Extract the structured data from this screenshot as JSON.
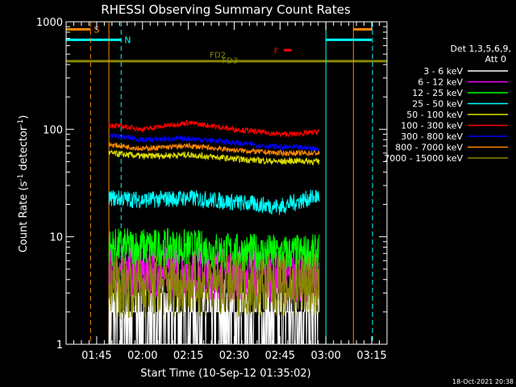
{
  "chart_data": {
    "type": "line",
    "title": "RHESSI Observing Summary Count Rates",
    "xlabel": "Start Time (10-Sep-12 01:35:02)",
    "ylabel_main": "Count Rate (s",
    "ylabel_sup1": "-1",
    "ylabel_mid": " detector",
    "ylabel_sup2": "-1",
    "ylabel_end": ")",
    "yscale": "log",
    "ylim": [
      1,
      1000
    ],
    "xlim_minutes": [
      0,
      100
    ],
    "x_ticks": [
      {
        "label": "01:45",
        "min": 10
      },
      {
        "label": "02:00",
        "min": 25
      },
      {
        "label": "02:15",
        "min": 40
      },
      {
        "label": "02:30",
        "min": 55
      },
      {
        "label": "02:45",
        "min": 70
      },
      {
        "label": "03:00",
        "min": 85
      },
      {
        "label": "03:15",
        "min": 100
      }
    ],
    "y_ticks": [
      {
        "label": "1",
        "value": 1
      },
      {
        "label": "10",
        "value": 10
      },
      {
        "label": "100",
        "value": 100
      },
      {
        "label": "1000",
        "value": 1000
      }
    ],
    "legend": {
      "header1": "Det 1,3,5,6,9,",
      "header2": "Att 0",
      "position": "right"
    },
    "series": [
      {
        "name": "3 - 6 keV",
        "color": "#ffffff",
        "level": 1.8,
        "noise": 0.9,
        "x": [
          14,
          25,
          40,
          55,
          70,
          75,
          83
        ],
        "y": [
          1.5,
          1.6,
          1.8,
          1.9,
          2.0,
          2.2,
          1.9
        ]
      },
      {
        "name": "6 - 12 keV",
        "color": "#ff00ff",
        "level": 4.5,
        "noise": 0.25,
        "x": [
          14,
          25,
          40,
          55,
          70,
          75,
          83
        ],
        "y": [
          5.0,
          4.8,
          4.6,
          4.5,
          4.3,
          4.2,
          4.3
        ]
      },
      {
        "name": "12 - 25 keV",
        "color": "#00ff00",
        "level": 7.5,
        "noise": 0.18,
        "x": [
          14,
          25,
          40,
          55,
          70,
          75,
          83
        ],
        "y": [
          8.0,
          8.0,
          7.8,
          7.2,
          7.0,
          7.0,
          7.0
        ]
      },
      {
        "name": "25 - 50 keV",
        "color": "#00ffff",
        "level": 21,
        "noise": 0.08,
        "x": [
          14,
          25,
          40,
          55,
          70,
          75,
          83
        ],
        "y": [
          23,
          22,
          23,
          21,
          19,
          21,
          24
        ]
      },
      {
        "name": "50 - 100 keV",
        "color": "#dddd00",
        "level": 55,
        "noise": 0.03,
        "x": [
          14,
          25,
          40,
          55,
          70,
          75,
          83
        ],
        "y": [
          60,
          56,
          58,
          53,
          50,
          51,
          50
        ]
      },
      {
        "name": "100 - 300 keV",
        "color": "#ff0000",
        "level": 100,
        "noise": 0.025,
        "x": [
          14,
          25,
          40,
          55,
          70,
          75,
          83
        ],
        "y": [
          110,
          100,
          115,
          100,
          90,
          90,
          95
        ]
      },
      {
        "name": "300 - 800 keV",
        "color": "#0000ff",
        "level": 75,
        "noise": 0.025,
        "x": [
          14,
          25,
          40,
          55,
          70,
          75,
          83
        ],
        "y": [
          88,
          80,
          82,
          75,
          68,
          68,
          66
        ]
      },
      {
        "name": "800 - 7000 keV",
        "color": "#ff8800",
        "level": 65,
        "noise": 0.025,
        "x": [
          14,
          25,
          40,
          55,
          70,
          75,
          83
        ],
        "y": [
          72,
          66,
          70,
          64,
          60,
          60,
          60
        ]
      },
      {
        "name": "7000 - 15000 keV",
        "color": "#888800",
        "level": 3.5,
        "noise": 0.3,
        "x": [
          14,
          25,
          40,
          55,
          70,
          75,
          83
        ],
        "y": [
          3.4,
          3.5,
          3.6,
          3.6,
          3.5,
          3.5,
          3.6
        ]
      }
    ],
    "flag_lines": [
      {
        "label": "S",
        "color": "#ff8800",
        "value": 850,
        "segments": [
          [
            0,
            8
          ],
          [
            94,
            100
          ]
        ]
      },
      {
        "label": "N",
        "color": "#00ffff",
        "value": 680,
        "segments": [
          [
            0,
            18
          ],
          [
            85,
            100
          ]
        ]
      }
    ],
    "event_labels": [
      {
        "label": "F",
        "color": "#ff0000",
        "x": 68,
        "value": 540
      },
      {
        "label": "FD2",
        "color": "#888800",
        "x": 47,
        "value": 495
      },
      {
        "label": "FD3",
        "color": "#888800",
        "x": 51,
        "value": 440
      }
    ],
    "vertical_markers": [
      {
        "color": "#ff8800",
        "x": 8,
        "dashed": true
      },
      {
        "color": "#00ffff",
        "x": 18,
        "dashed": true
      },
      {
        "color": "#ff8800",
        "x": 14,
        "dashed": false
      },
      {
        "color": "#00ffff",
        "x": 85,
        "dashed": false
      },
      {
        "color": "#ff8800",
        "x": 94,
        "dashed": false
      },
      {
        "color": "#00ffff",
        "x": 103,
        "dashed": true
      }
    ],
    "baseline": {
      "color": "#888800",
      "value": 430
    }
  },
  "footer": {
    "timestamp": "18-Oct-2021 20:38"
  }
}
